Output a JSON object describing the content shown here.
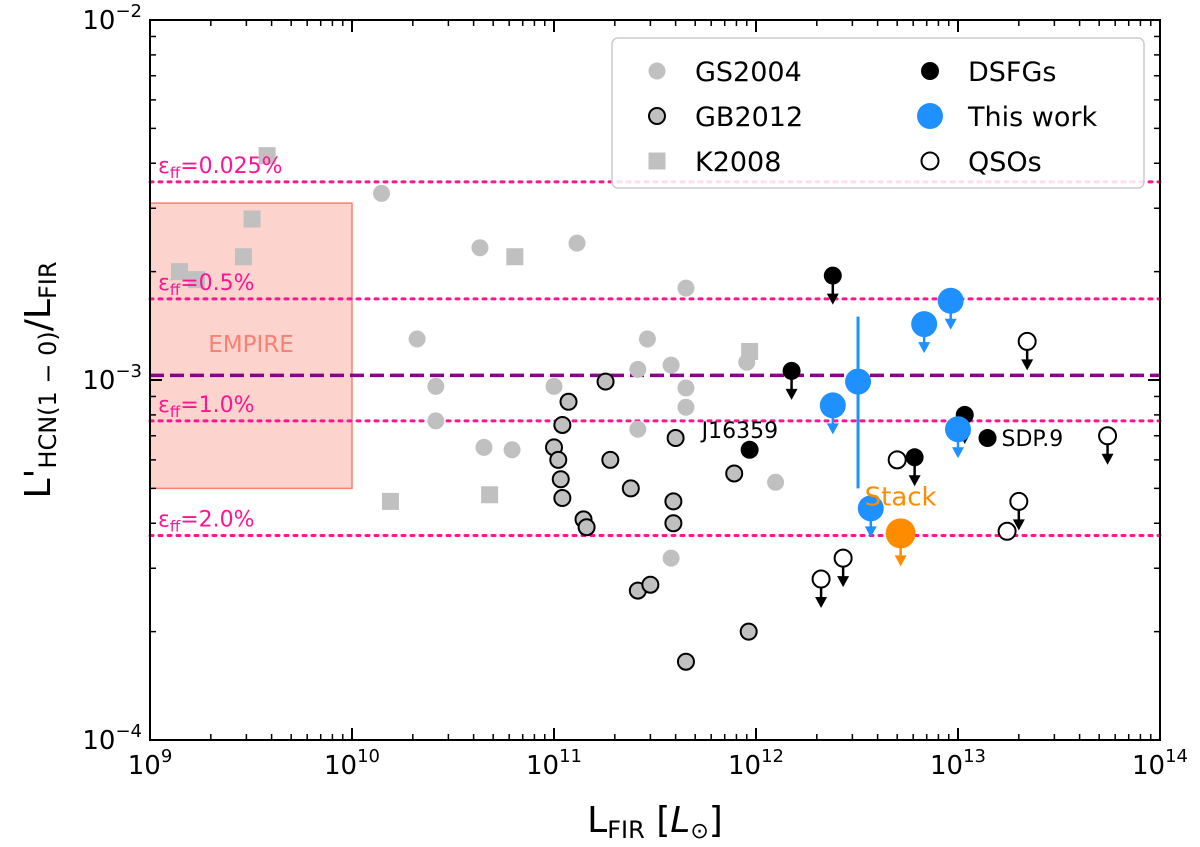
{
  "chart_data": {
    "type": "scatter",
    "x_scale": "log",
    "y_scale": "log",
    "xlim": [
      1000000000.0,
      100000000000000.0
    ],
    "ylim": [
      0.0001,
      0.01
    ],
    "xlabel": "L_FIR [L_⊙]",
    "xlabel_main": "L",
    "xlabel_sub": "FIR",
    "xlabel_unit": "L",
    "ylabel": "L'_HCN(1-0)/L_FIR",
    "ylabel_main": "L'",
    "ylabel_sub": "HCN(1 − 0)",
    "ylabel_tail": "/L",
    "ylabel_sub2": "FIR",
    "x_ticks": [
      {
        "value": 1000000000.0,
        "base": "10",
        "exp": "9"
      },
      {
        "value": 10000000000.0,
        "base": "10",
        "exp": "10"
      },
      {
        "value": 100000000000.0,
        "base": "10",
        "exp": "11"
      },
      {
        "value": 1000000000000.0,
        "base": "10",
        "exp": "12"
      },
      {
        "value": 10000000000000.0,
        "base": "10",
        "exp": "13"
      },
      {
        "value": 100000000000000.0,
        "base": "10",
        "exp": "14"
      }
    ],
    "y_ticks": [
      {
        "value": 0.0001,
        "base": "10",
        "exp": "−4"
      },
      {
        "value": 0.001,
        "base": "10",
        "exp": "−3"
      },
      {
        "value": 0.01,
        "base": "10",
        "exp": "−2"
      }
    ],
    "empire_region": {
      "x": [
        1000000000.0,
        10000000000.0
      ],
      "y": [
        0.0005,
        0.0031
      ],
      "label": "EMPIRE",
      "color": "#fa8072"
    },
    "efficiency_lines": [
      {
        "label_base": "ε",
        "label_sub": "ff",
        "label_value": "=0.025%",
        "y": 0.00355
      },
      {
        "label_base": "ε",
        "label_sub": "ff",
        "label_value": "=0.5%",
        "y": 0.00168
      },
      {
        "label_base": "ε",
        "label_sub": "ff",
        "label_value": "=1.0%",
        "y": 0.00077
      },
      {
        "label_base": "ε",
        "label_sub": "ff",
        "label_value": "=2.0%",
        "y": 0.00037
      }
    ],
    "mean_line": {
      "y": 0.00103,
      "style": "dashed",
      "color": "#8b008b"
    },
    "series": [
      {
        "name": "GS2004",
        "marker": "circle-filled",
        "color": "#c0c0c0",
        "points": [
          [
            14000000000.0,
            0.0033
          ],
          [
            21000000000.0,
            0.0013
          ],
          [
            26000000000.0,
            0.00096
          ],
          [
            26000000000.0,
            0.00077
          ],
          [
            43000000000.0,
            0.00233
          ],
          [
            45000000000.0,
            0.00065
          ],
          [
            62000000000.0,
            0.00064
          ],
          [
            100000000000.0,
            0.00096
          ],
          [
            130000000000.0,
            0.0024
          ],
          [
            260000000000.0,
            0.00107
          ],
          [
            260000000000.0,
            0.00073
          ],
          [
            290000000000.0,
            0.0013
          ],
          [
            380000000000.0,
            0.0011
          ],
          [
            380000000000.0,
            0.00032
          ],
          [
            450000000000.0,
            0.0018
          ],
          [
            450000000000.0,
            0.00095
          ],
          [
            450000000000.0,
            0.00084
          ],
          [
            900000000000.0,
            0.00112
          ],
          [
            1250000000000.0,
            0.00052
          ]
        ]
      },
      {
        "name": "GB2012",
        "marker": "circle-gray-edge",
        "color": "#c0c0c0",
        "edgecolor": "#000000",
        "points": [
          [
            100000000000.0,
            0.00065
          ],
          [
            105000000000.0,
            0.0006
          ],
          [
            108000000000.0,
            0.00053
          ],
          [
            110000000000.0,
            0.00047
          ],
          [
            110000000000.0,
            0.00075
          ],
          [
            118000000000.0,
            0.00087
          ],
          [
            140000000000.0,
            0.00041
          ],
          [
            145000000000.0,
            0.00039
          ],
          [
            180000000000.0,
            0.00099
          ],
          [
            190000000000.0,
            0.0006
          ],
          [
            240000000000.0,
            0.0005
          ],
          [
            260000000000.0,
            0.00026
          ],
          [
            300000000000.0,
            0.00027
          ],
          [
            390000000000.0,
            0.00046
          ],
          [
            390000000000.0,
            0.0004
          ],
          [
            400000000000.0,
            0.00069
          ],
          [
            450000000000.0,
            0.000165
          ],
          [
            780000000000.0,
            0.00055
          ],
          [
            920000000000.0,
            0.0002
          ]
        ]
      },
      {
        "name": "K2008",
        "marker": "square",
        "color": "#c0c0c0",
        "points": [
          [
            1400000000.0,
            0.002
          ],
          [
            1700000000.0,
            0.0019
          ],
          [
            2900000000.0,
            0.0022
          ],
          [
            3200000000.0,
            0.0028
          ],
          [
            3800000000.0,
            0.0042
          ],
          [
            15500000000.0,
            0.00046
          ],
          [
            48000000000.0,
            0.00048
          ],
          [
            64000000000.0,
            0.0022
          ],
          [
            930000000000.0,
            0.0012
          ]
        ]
      },
      {
        "name": "DSFGs",
        "marker": "circle-black",
        "color": "#000000",
        "points": [
          {
            "x": 930000000000.0,
            "y": 0.00064,
            "label": "J16359"
          },
          {
            "x": 14000000000000.0,
            "y": 0.00069,
            "label": "SDP.9"
          },
          {
            "x": 2400000000000.0,
            "y": 0.00195,
            "upper_limit": true
          },
          {
            "x": 1500000000000.0,
            "y": 0.00106,
            "upper_limit": true
          },
          {
            "x": 6100000000000.0,
            "y": 0.00061,
            "upper_limit": true
          },
          {
            "x": 10800000000000.0,
            "y": 0.0008,
            "upper_limit": true
          }
        ]
      },
      {
        "name": "This work",
        "marker": "circle-blue",
        "color": "#1e90ff",
        "points": [
          {
            "x": 3200000000000.0,
            "y": 0.00099,
            "yerr": [
              0.0005,
              0.0015
            ]
          },
          {
            "x": 2400000000000.0,
            "y": 0.00085,
            "upper_limit": true
          },
          {
            "x": 6800000000000.0,
            "y": 0.00143,
            "upper_limit": true
          },
          {
            "x": 9200000000000.0,
            "y": 0.00166,
            "upper_limit": true
          },
          {
            "x": 10000000000000.0,
            "y": 0.00073,
            "upper_limit": true
          },
          {
            "x": 3700000000000.0,
            "y": 0.00044,
            "upper_limit": true
          }
        ]
      },
      {
        "name": "QSOs",
        "marker": "circle-open",
        "color": "#ffffff",
        "edgecolor": "#000000",
        "points": [
          {
            "x": 5000000000000.0,
            "y": 0.0006
          },
          {
            "x": 17500000000000.0,
            "y": 0.00038
          },
          {
            "x": 22000000000000.0,
            "y": 0.00128,
            "upper_limit": true
          },
          {
            "x": 55000000000000.0,
            "y": 0.0007,
            "upper_limit": true
          },
          {
            "x": 20000000000000.0,
            "y": 0.00046,
            "upper_limit": true
          },
          {
            "x": 2700000000000.0,
            "y": 0.00032,
            "upper_limit": true
          },
          {
            "x": 2100000000000.0,
            "y": 0.00028,
            "upper_limit": true
          }
        ]
      },
      {
        "name": "Stack",
        "marker": "circle-orange",
        "color": "#ff8c00",
        "points": [
          {
            "x": 5200000000000.0,
            "y": 0.000375,
            "upper_limit": true,
            "label": "Stack"
          }
        ]
      }
    ],
    "legend": {
      "placement": "top-right",
      "entries": [
        {
          "label": "GS2004",
          "marker": "circle-filled"
        },
        {
          "label": "DSFGs",
          "marker": "circle-black"
        },
        {
          "label": "GB2012",
          "marker": "circle-gray-edge"
        },
        {
          "label": "This work",
          "marker": "circle-blue"
        },
        {
          "label": "K2008",
          "marker": "square"
        },
        {
          "label": "QSOs",
          "marker": "circle-open"
        }
      ]
    }
  }
}
